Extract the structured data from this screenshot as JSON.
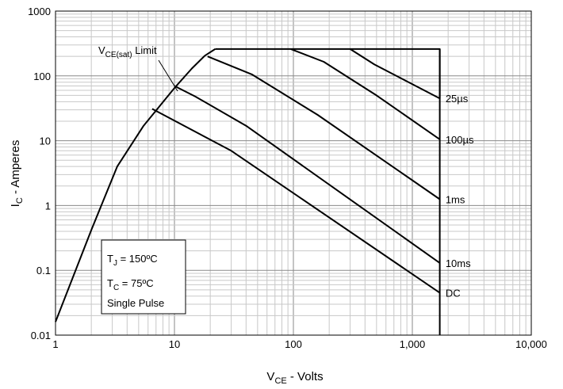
{
  "chart_data": {
    "type": "line",
    "xlabel_main": "V",
    "xlabel_sub": "CE",
    "xlabel_rest": " - Volts",
    "ylabel_main": "I",
    "ylabel_sub": "C",
    "ylabel_rest": " - Amperes",
    "x_scale": "log",
    "y_scale": "log",
    "xlim": [
      1,
      10000
    ],
    "ylim": [
      0.01,
      1000
    ],
    "x_ticks": [
      {
        "value": 1,
        "label": "1"
      },
      {
        "value": 10,
        "label": "10"
      },
      {
        "value": 100,
        "label": "100"
      },
      {
        "value": 1000,
        "label": "1,000"
      },
      {
        "value": 10000,
        "label": "10,000"
      }
    ],
    "y_ticks": [
      {
        "value": 0.01,
        "label": "0.01"
      },
      {
        "value": 0.1,
        "label": "0.1"
      },
      {
        "value": 1,
        "label": "1"
      },
      {
        "value": 10,
        "label": "10"
      },
      {
        "value": 100,
        "label": "100"
      },
      {
        "value": 1000,
        "label": "1000"
      }
    ],
    "grid": true,
    "series": [
      {
        "name": "V",
        "name_sub": "CE(sat)",
        "name_rest": " Limit",
        "points": [
          [
            1,
            0.016
          ],
          [
            2,
            0.42
          ],
          [
            3.3,
            4
          ],
          [
            5.5,
            17
          ],
          [
            10,
            65
          ],
          [
            14,
            130
          ],
          [
            18,
            205
          ],
          [
            22,
            260
          ]
        ]
      },
      {
        "name": "25µs",
        "points": [
          [
            300,
            260
          ],
          [
            480,
            150
          ],
          [
            1700,
            45
          ],
          [
            1700,
            260
          ]
        ]
      },
      {
        "name": "100µs",
        "points": [
          [
            95,
            260
          ],
          [
            180,
            165
          ],
          [
            500,
            50
          ],
          [
            1700,
            10.5
          ]
        ]
      },
      {
        "name": "1ms",
        "points": [
          [
            19,
            200
          ],
          [
            45,
            105
          ],
          [
            160,
            25
          ],
          [
            1700,
            1.25
          ]
        ]
      },
      {
        "name": "10ms",
        "points": [
          [
            10,
            70
          ],
          [
            15,
            48
          ],
          [
            40,
            17
          ],
          [
            1700,
            0.13
          ]
        ]
      },
      {
        "name": "DC",
        "points": [
          [
            6.5,
            31
          ],
          [
            30,
            7
          ],
          [
            1700,
            0.045
          ]
        ]
      },
      {
        "name": "",
        "points": [
          [
            22,
            260
          ],
          [
            1700,
            260
          ],
          [
            1700,
            0.01
          ]
        ]
      }
    ],
    "curve_labels": [
      {
        "text": "25µs",
        "at": [
          1900,
          45
        ]
      },
      {
        "text": "100µs",
        "at": [
          1900,
          10.5
        ]
      },
      {
        "text": "1ms",
        "at": [
          1900,
          1.25
        ]
      },
      {
        "text": "10ms",
        "at": [
          1900,
          0.13
        ]
      },
      {
        "text": "DC",
        "at": [
          1900,
          0.045
        ]
      }
    ],
    "annotation": {
      "lines": [
        {
          "main": "T",
          "sub": "J",
          "rest": " = 150ºC"
        },
        {
          "main": "T",
          "sub": "C",
          "rest": " = 75ºC"
        },
        {
          "main": "Single Pulse",
          "sub": "",
          "rest": ""
        }
      ]
    }
  }
}
